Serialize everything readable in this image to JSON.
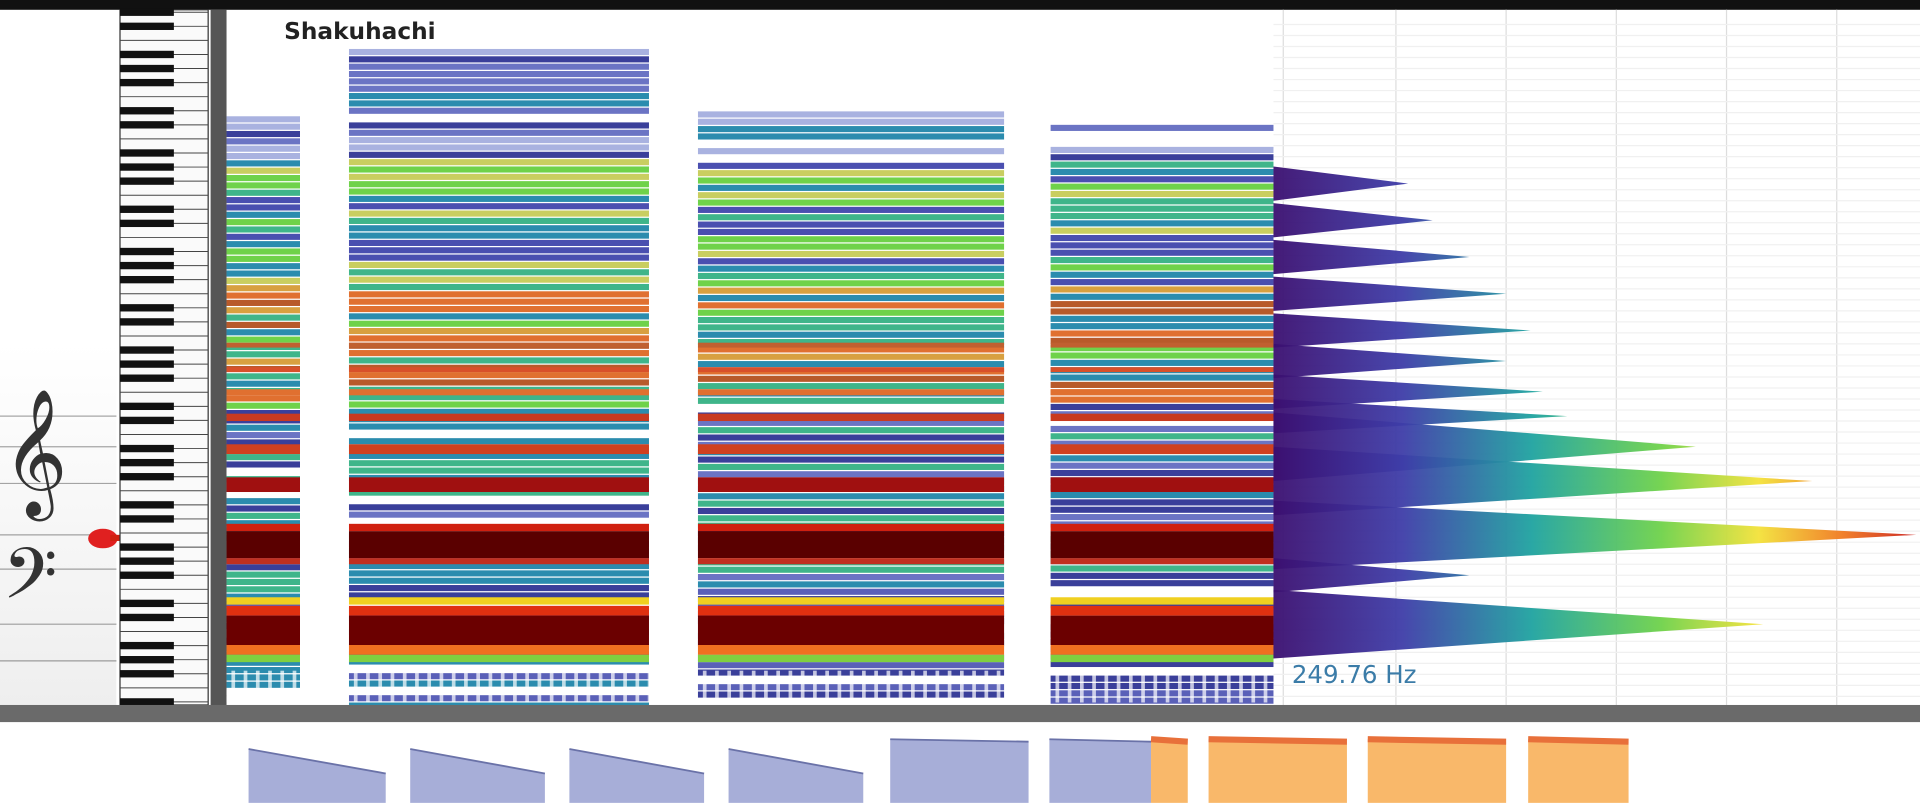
{
  "header": {
    "title": "Shakuhachi"
  },
  "readout": {
    "frequency": "249.76 Hz"
  }
}
